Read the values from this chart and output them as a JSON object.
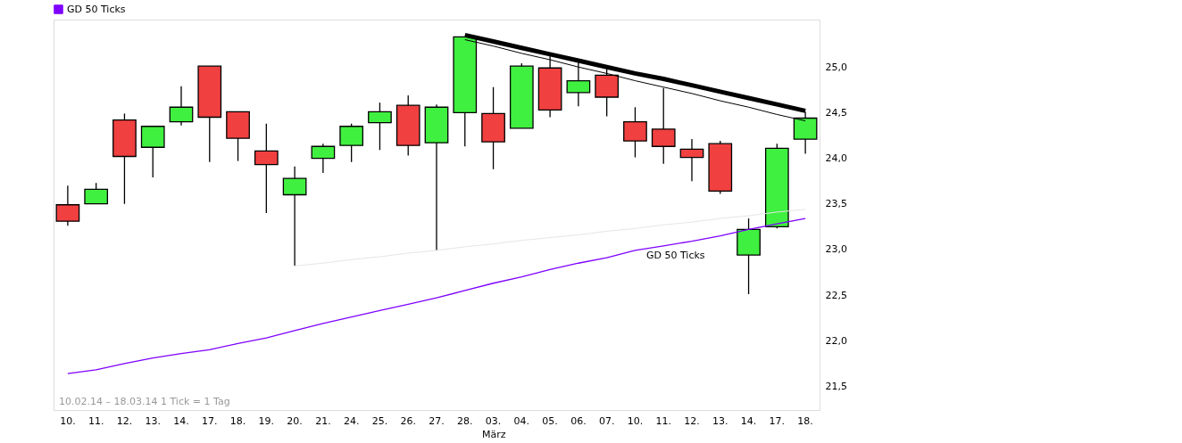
{
  "chart_data": {
    "type": "candlestick",
    "categories": [
      "10.",
      "11.",
      "12.",
      "13.",
      "14.",
      "17.",
      "18.",
      "19.",
      "20.",
      "21.",
      "24.",
      "25.",
      "26.",
      "27.",
      "28.",
      "03.",
      "04.",
      "05.",
      "06.",
      "07.",
      "10.",
      "11.",
      "12.",
      "13.",
      "14.",
      "17.",
      "18."
    ],
    "ohlc": [
      [
        23.49,
        23.7,
        23.26,
        23.31
      ],
      [
        23.5,
        23.73,
        23.5,
        23.66
      ],
      [
        24.42,
        24.49,
        23.5,
        24.02
      ],
      [
        24.12,
        24.35,
        23.79,
        24.35
      ],
      [
        24.4,
        24.79,
        24.36,
        24.56
      ],
      [
        25.01,
        25.01,
        23.96,
        24.45
      ],
      [
        24.51,
        24.51,
        23.97,
        24.22
      ],
      [
        24.08,
        24.38,
        23.4,
        23.93
      ],
      [
        23.6,
        23.91,
        22.82,
        23.78
      ],
      [
        24.0,
        24.16,
        23.84,
        24.13
      ],
      [
        24.14,
        24.38,
        23.96,
        24.35
      ],
      [
        24.39,
        24.61,
        24.09,
        24.51
      ],
      [
        24.58,
        24.69,
        24.03,
        24.14
      ],
      [
        24.17,
        24.59,
        22.99,
        24.56
      ],
      [
        24.5,
        25.33,
        24.13,
        25.33
      ],
      [
        24.49,
        24.78,
        23.88,
        24.18
      ],
      [
        24.33,
        25.04,
        24.33,
        25.01
      ],
      [
        24.99,
        25.15,
        24.45,
        24.53
      ],
      [
        24.72,
        25.07,
        24.57,
        24.85
      ],
      [
        24.91,
        25.01,
        24.46,
        24.67
      ],
      [
        24.4,
        24.56,
        24.01,
        24.19
      ],
      [
        24.32,
        24.77,
        23.94,
        24.13
      ],
      [
        24.1,
        24.21,
        23.75,
        24.01
      ],
      [
        24.16,
        24.19,
        23.61,
        23.64
      ],
      [
        22.94,
        23.34,
        22.51,
        23.22
      ],
      [
        23.25,
        24.16,
        23.23,
        24.11
      ],
      [
        24.21,
        24.51,
        24.05,
        24.44
      ]
    ],
    "colors": [
      "#f04040",
      "#40f040",
      "#f04040",
      "#40f040",
      "#40f040",
      "#f04040",
      "#f04040",
      "#f04040",
      "#40f040",
      "#40f040",
      "#40f040",
      "#40f040",
      "#f04040",
      "#40f040",
      "#40f040",
      "#f04040",
      "#40f040",
      "#f04040",
      "#40f040",
      "#f04040",
      "#f04040",
      "#f04040",
      "#f04040",
      "#f04040",
      "#40f040",
      "#40f040",
      "#40f040"
    ],
    "series": [
      {
        "type": "line",
        "name": "GD 50 Ticks",
        "color": "#7f00ff",
        "values": [
          21.64,
          21.68,
          21.75,
          21.81,
          21.86,
          21.9,
          21.97,
          22.03,
          22.11,
          22.19,
          22.26,
          22.33,
          22.4,
          22.47,
          22.55,
          22.63,
          22.7,
          22.78,
          22.85,
          22.91,
          22.99,
          23.04,
          23.09,
          23.15,
          23.22,
          23.28,
          23.34
        ]
      },
      {
        "type": "line",
        "color": "#000000",
        "values": [
          null,
          null,
          null,
          null,
          null,
          null,
          null,
          null,
          null,
          null,
          null,
          null,
          null,
          null,
          25.35,
          25.28,
          25.21,
          25.14,
          25.07,
          25.0,
          24.93,
          24.87,
          24.8,
          24.73,
          24.66,
          24.59,
          24.52
        ]
      },
      {
        "type": "line",
        "color": "#000000",
        "values": [
          null,
          null,
          null,
          null,
          null,
          null,
          null,
          null,
          null,
          null,
          null,
          null,
          null,
          null,
          25.3,
          25.23,
          25.15,
          25.08,
          25.0,
          24.93,
          24.85,
          24.78,
          24.71,
          24.63,
          24.56,
          24.48,
          24.41
        ]
      },
      {
        "type": "line",
        "color": "#e6e6e6",
        "values": [
          null,
          null,
          null,
          null,
          null,
          null,
          null,
          null,
          22.82,
          22.85,
          22.89,
          22.92,
          22.96,
          22.99,
          23.03,
          23.06,
          23.1,
          23.13,
          23.16,
          23.2,
          23.23,
          23.27,
          23.3,
          23.34,
          23.37,
          23.41,
          23.44
        ]
      }
    ],
    "ylim": [
      21.24,
      25.52
    ],
    "yticks": [
      {
        "value": 21.5,
        "label": "21,5"
      },
      {
        "value": 22,
        "label": "22,0"
      },
      {
        "value": 22.5,
        "label": "22,5"
      },
      {
        "value": 23,
        "label": "23,0"
      },
      {
        "value": 23.5,
        "label": "23,5"
      },
      {
        "value": 24,
        "label": "24,0"
      },
      {
        "value": 24.5,
        "label": "24,5"
      },
      {
        "value": 25,
        "label": "25,0"
      }
    ],
    "annotations": [
      "10.02.14 – 18.03.14   1 Tick = 1 Tag",
      "GD 50 Ticks",
      "März"
    ],
    "legend": "top left",
    "grid": false
  }
}
